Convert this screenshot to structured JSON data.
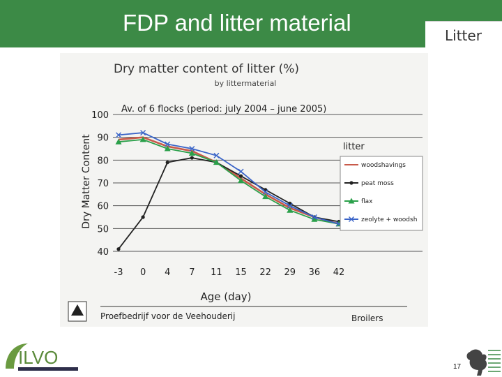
{
  "slide": {
    "title": "FDP  and litter material",
    "section_tab": "Litter",
    "page_number": "17",
    "logo_text": "ILVO",
    "brand_color": "#3c8a46"
  },
  "chart_data": {
    "type": "line",
    "title": "Dry matter content of litter (%)",
    "subtitle": "by littermaterial",
    "annotation": "Av. of 6 flocks (period: july 2004 – june 2005)",
    "xlabel": "Age (day)",
    "ylabel": "Dry Matter Content",
    "categories": [
      "-3",
      "0",
      "4",
      "7",
      "11",
      "15",
      "22",
      "29",
      "36",
      "42"
    ],
    "ylim": [
      40,
      100
    ],
    "yticks": [
      40,
      50,
      60,
      70,
      80,
      90,
      100
    ],
    "grid": "horizontal",
    "legend_title": "litter",
    "legend_position": "right",
    "series": [
      {
        "name": "woodshavings",
        "color": "#c85a4a",
        "marker": "none",
        "values": [
          89,
          90,
          86,
          84,
          79,
          72,
          65,
          59,
          55,
          52
        ]
      },
      {
        "name": "peat moss",
        "color": "#222222",
        "marker": "dot",
        "values": [
          41,
          55,
          79,
          81,
          79,
          73,
          67,
          61,
          55,
          53
        ]
      },
      {
        "name": "flax",
        "color": "#2aa04a",
        "marker": "triangle",
        "values": [
          88,
          89,
          85,
          83,
          79,
          71,
          64,
          58,
          54,
          52
        ]
      },
      {
        "name": "zeolyte + woodsh",
        "color": "#3a64c8",
        "marker": "cross",
        "values": [
          91,
          92,
          87,
          85,
          82,
          75,
          66,
          60,
          55,
          52
        ]
      }
    ],
    "footer_left": "Proefbedrijf voor de Veehouderij",
    "footer_right": "Broilers"
  }
}
